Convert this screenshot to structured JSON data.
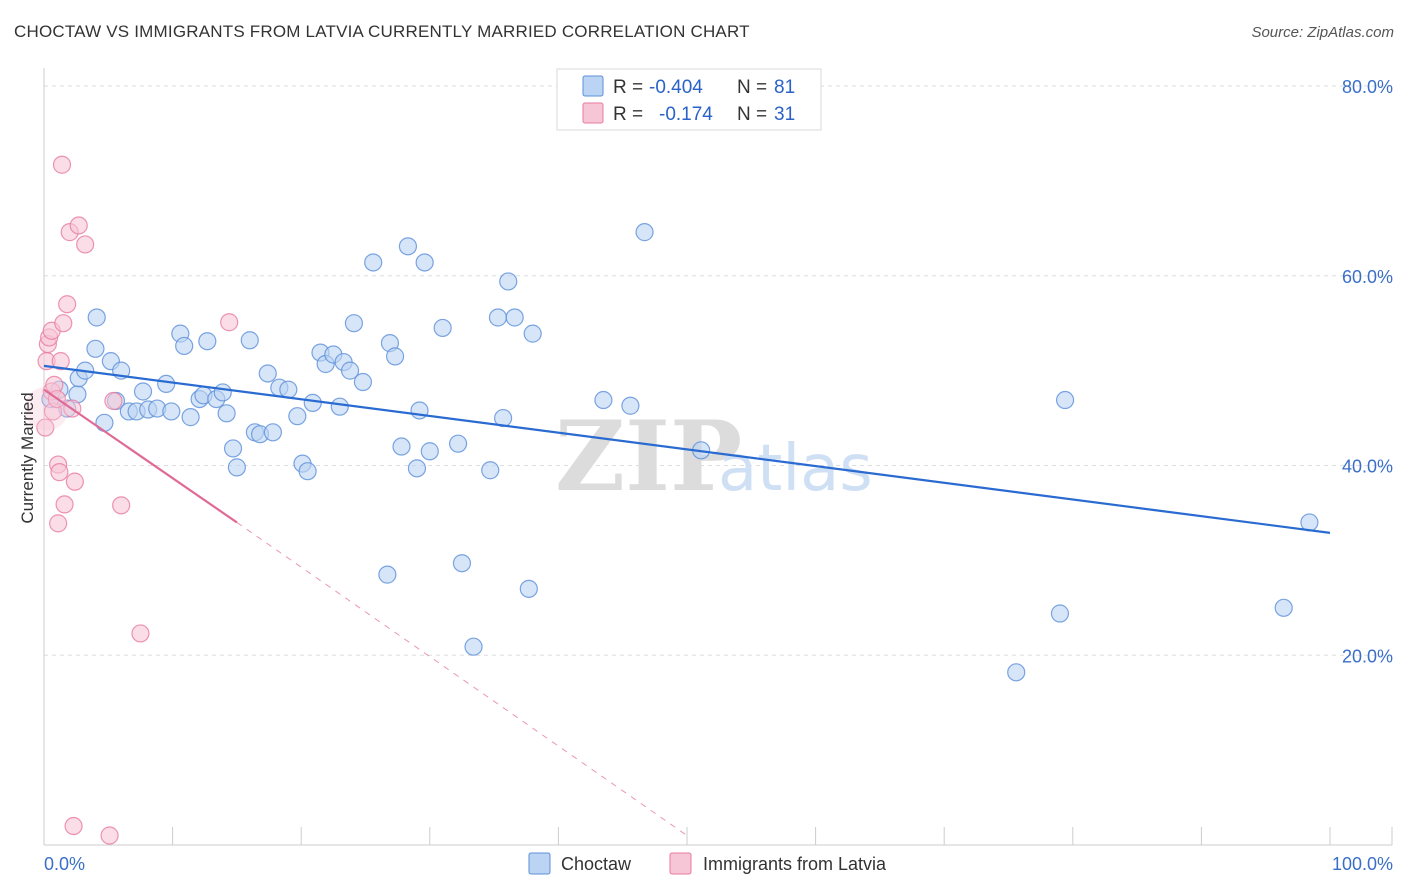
{
  "title": "CHOCTAW VS IMMIGRANTS FROM LATVIA CURRENTLY MARRIED CORRELATION CHART",
  "source": "Source: ZipAtlas.com",
  "colors": {
    "blue": "#5b8fd9",
    "blue_fill": "#bcd4f3",
    "blue_line": "#2a6bd1",
    "pink": "#e87aa0",
    "pink_fill": "#f7c6d6",
    "pink_line": "#e06a96",
    "tick": "#3a6fc8"
  },
  "legend": {
    "r_label": "R =",
    "n_label": "N =",
    "series1_r": "-0.404",
    "series1_n": "81",
    "series2_r": "-0.174",
    "series2_n": "31"
  },
  "watermark": {
    "zip": "ZIP",
    "atlas": "atlas"
  },
  "chart_data": {
    "type": "scatter",
    "xlabel": "",
    "ylabel": "Currently Married",
    "xlim": [
      0,
      100
    ],
    "ylim": [
      0,
      80
    ],
    "x_tick_labels": [
      "0.0%",
      "100.0%"
    ],
    "y_ticks": [
      20,
      40,
      60,
      80
    ],
    "y_tick_labels": [
      "20.0%",
      "40.0%",
      "60.0%",
      "80.0%"
    ],
    "grid": "horizontal dashed",
    "legend_position": "top-center",
    "series": [
      {
        "name": "Choctaw",
        "color": "#5b8fd9",
        "trend": {
          "x": [
            0,
            100
          ],
          "y": [
            50.5,
            32.9
          ]
        },
        "points": [
          [
            0.5,
            47.0
          ],
          [
            1.2,
            48.0
          ],
          [
            1.8,
            46.0
          ],
          [
            2.6,
            47.5
          ],
          [
            2.7,
            49.2
          ],
          [
            3.2,
            50.0
          ],
          [
            4.0,
            52.3
          ],
          [
            4.1,
            55.6
          ],
          [
            4.7,
            44.5
          ],
          [
            5.2,
            51.0
          ],
          [
            5.6,
            46.8
          ],
          [
            6.0,
            50.0
          ],
          [
            6.6,
            45.7
          ],
          [
            7.2,
            45.7
          ],
          [
            7.7,
            47.8
          ],
          [
            8.1,
            45.9
          ],
          [
            8.8,
            46.0
          ],
          [
            9.5,
            48.6
          ],
          [
            9.9,
            45.7
          ],
          [
            10.6,
            53.9
          ],
          [
            10.9,
            52.6
          ],
          [
            11.4,
            45.1
          ],
          [
            12.1,
            47.0
          ],
          [
            12.4,
            47.4
          ],
          [
            12.7,
            53.1
          ],
          [
            13.4,
            47.0
          ],
          [
            13.9,
            47.7
          ],
          [
            14.2,
            45.5
          ],
          [
            14.7,
            41.8
          ],
          [
            15.0,
            39.8
          ],
          [
            16.0,
            53.2
          ],
          [
            16.4,
            43.5
          ],
          [
            16.8,
            43.3
          ],
          [
            17.4,
            49.7
          ],
          [
            17.8,
            43.5
          ],
          [
            18.3,
            48.2
          ],
          [
            19.0,
            48.0
          ],
          [
            19.7,
            45.2
          ],
          [
            20.1,
            40.2
          ],
          [
            20.5,
            39.4
          ],
          [
            20.9,
            46.6
          ],
          [
            21.5,
            51.9
          ],
          [
            21.9,
            50.7
          ],
          [
            22.5,
            51.7
          ],
          [
            23.0,
            46.2
          ],
          [
            23.3,
            50.9
          ],
          [
            23.8,
            50.0
          ],
          [
            24.1,
            55.0
          ],
          [
            24.8,
            48.8
          ],
          [
            25.6,
            61.4
          ],
          [
            26.7,
            28.5
          ],
          [
            26.9,
            52.9
          ],
          [
            27.3,
            51.5
          ],
          [
            27.8,
            42.0
          ],
          [
            28.3,
            63.1
          ],
          [
            29.0,
            39.7
          ],
          [
            29.2,
            45.8
          ],
          [
            29.6,
            61.4
          ],
          [
            30.0,
            41.5
          ],
          [
            31.0,
            54.5
          ],
          [
            32.2,
            42.3
          ],
          [
            32.5,
            29.7
          ],
          [
            33.4,
            20.9
          ],
          [
            34.7,
            39.5
          ],
          [
            35.3,
            55.6
          ],
          [
            35.7,
            45.0
          ],
          [
            36.1,
            59.4
          ],
          [
            36.6,
            55.6
          ],
          [
            37.7,
            27.0
          ],
          [
            38.0,
            53.9
          ],
          [
            43.5,
            46.9
          ],
          [
            45.6,
            46.3
          ],
          [
            46.7,
            64.6
          ],
          [
            51.1,
            41.6
          ],
          [
            75.6,
            18.2
          ],
          [
            79.0,
            24.4
          ],
          [
            79.4,
            46.9
          ],
          [
            96.4,
            25.0
          ],
          [
            98.4,
            34.0
          ]
        ]
      },
      {
        "name": "Immigrants from Latvia",
        "color": "#e87aa0",
        "trend": {
          "x": [
            0,
            15
          ],
          "y": [
            48.0,
            34.0
          ]
        },
        "trend_dashed": {
          "x": [
            15,
            50
          ],
          "y": [
            34.0,
            1.0
          ]
        },
        "points": [
          [
            0.1,
            44.0
          ],
          [
            0.2,
            51.0
          ],
          [
            0.3,
            52.8
          ],
          [
            0.4,
            53.5
          ],
          [
            0.6,
            54.2
          ],
          [
            0.6,
            47.8
          ],
          [
            0.7,
            45.7
          ],
          [
            0.8,
            48.5
          ],
          [
            1.0,
            47.0
          ],
          [
            1.1,
            40.1
          ],
          [
            1.1,
            33.9
          ],
          [
            1.2,
            39.3
          ],
          [
            1.3,
            51.0
          ],
          [
            1.4,
            71.7
          ],
          [
            1.5,
            55.0
          ],
          [
            1.6,
            35.9
          ],
          [
            1.8,
            57.0
          ],
          [
            2.0,
            64.6
          ],
          [
            2.2,
            46.0
          ],
          [
            2.3,
            2.0
          ],
          [
            2.4,
            38.3
          ],
          [
            2.7,
            65.3
          ],
          [
            3.2,
            63.3
          ],
          [
            5.1,
            1.0
          ],
          [
            5.4,
            46.8
          ],
          [
            6.0,
            35.8
          ],
          [
            7.5,
            22.3
          ],
          [
            14.4,
            55.1
          ]
        ]
      }
    ]
  }
}
